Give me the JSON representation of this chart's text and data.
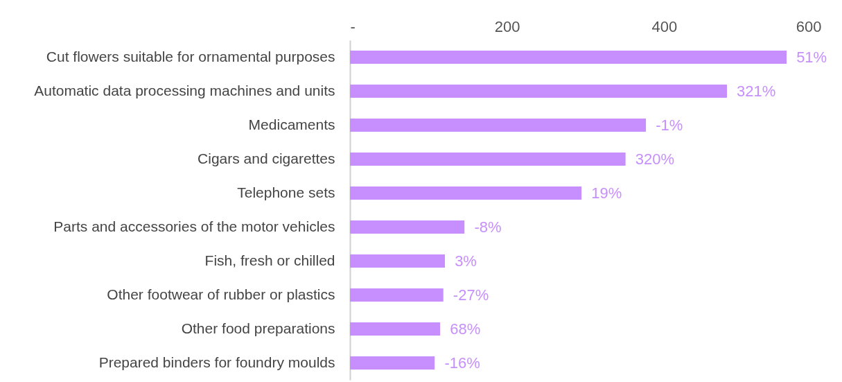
{
  "chart_data": {
    "type": "bar",
    "orientation": "horizontal",
    "categories": [
      "Cut flowers suitable for ornamental purposes",
      "Automatic data processing machines and units",
      "Medicaments",
      "Cigars and cigarettes",
      "Telephone sets",
      "Parts and accessories of the motor vehicles",
      "Fish, fresh or chilled",
      "Other footwear of rubber or plastics",
      "Other food preparations",
      "Prepared binders for foundry moulds"
    ],
    "values": [
      556,
      480,
      377,
      351,
      295,
      146,
      121,
      119,
      115,
      108
    ],
    "color": "#c78ffd",
    "xlim": [
      0,
      600
    ],
    "xticks": [
      {
        "value": 0,
        "label": "-"
      },
      200,
      400,
      600
    ],
    "grid": false,
    "annotations": [
      {
        "text": "51%",
        "x": 556,
        "y": "Cut flowers suitable for ornamental purposes"
      },
      {
        "text": "321%",
        "x": 480,
        "y": "Automatic data processing machines and units"
      },
      {
        "text": "-1%",
        "x": 377,
        "y": "Medicaments"
      },
      {
        "text": "320%",
        "x": 351,
        "y": "Cigars and cigarettes"
      },
      {
        "text": "19%",
        "x": 295,
        "y": "Telephone sets"
      },
      {
        "text": "-8%",
        "x": 146,
        "y": "Parts and accessories of the motor vehicles"
      },
      {
        "text": "3%",
        "x": 121,
        "y": "Fish, fresh or chilled"
      },
      {
        "text": "-27%",
        "x": 119,
        "y": "Other footwear of rubber or plastics"
      },
      {
        "text": "68%",
        "x": 115,
        "y": "Other food preparations"
      },
      {
        "text": "-16%",
        "x": 108,
        "y": "Prepared binders for foundry moulds"
      }
    ]
  }
}
